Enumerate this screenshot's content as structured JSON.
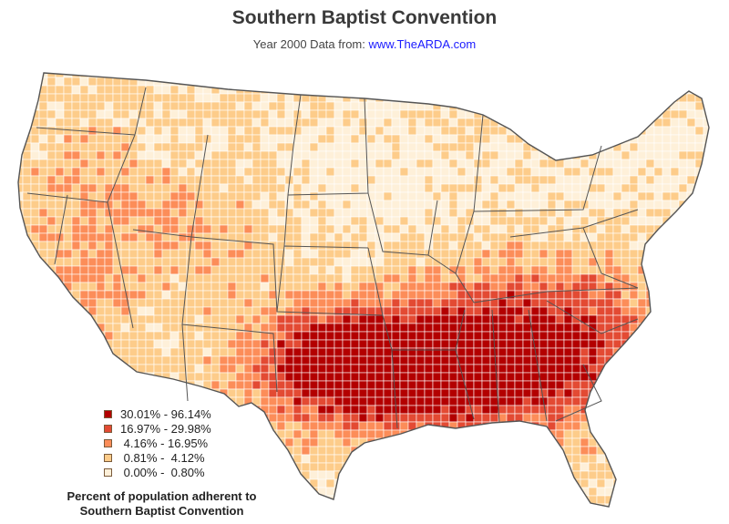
{
  "header": {
    "title": "Southern Baptist Convention",
    "subtitle_prefix": "Year 2000 Data from: ",
    "subtitle_link": "www.TheARDA.com"
  },
  "legend": {
    "items": [
      {
        "label": "30.01% - 96.14%",
        "color": "#b30000"
      },
      {
        "label": "16.97% - 29.98%",
        "color": "#e34a33"
      },
      {
        "label": " 4.16% - 16.95%",
        "color": "#fc8d59"
      },
      {
        "label": " 0.81% -  4.12%",
        "color": "#fdcc8a"
      },
      {
        "label": " 0.00% -  0.80%",
        "color": "#fef0d9"
      }
    ],
    "caption_line1": "Percent of population adherent to",
    "caption_line2": "Southern Baptist Convention"
  },
  "map": {
    "region": "Contiguous United States",
    "unit": "county",
    "colors": {
      "border": "#ffffff",
      "state_border": "#555555",
      "background": "#ffffff"
    }
  }
}
